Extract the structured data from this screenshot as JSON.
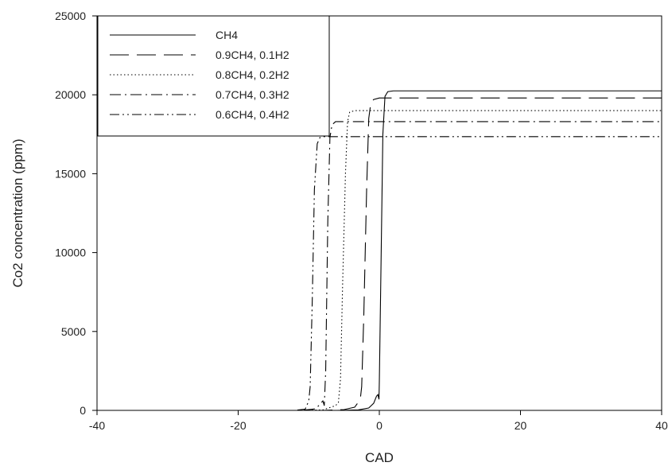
{
  "chart_data": {
    "type": "line",
    "title": "",
    "xlabel": "CAD",
    "ylabel": "Co2 concentration (ppm)",
    "xlim": [
      -40,
      40
    ],
    "ylim": [
      0,
      25000
    ],
    "xticks": [
      "-40",
      "-20",
      "0",
      "20",
      "40"
    ],
    "yticks": [
      "0",
      "5000",
      "10000",
      "15000",
      "20000",
      "25000"
    ],
    "grid": false,
    "legend_position": "top-left",
    "series": [
      {
        "name": "CH4",
        "dash": "solid",
        "x": [
          -40,
          -6,
          -3,
          -1.5,
          -0.8,
          -0.4,
          -0.2,
          -0.05,
          0,
          0.2,
          0.5,
          0.8,
          1.2,
          2,
          40
        ],
        "y": [
          0,
          0,
          30,
          150,
          450,
          900,
          1000,
          700,
          1800,
          8000,
          17500,
          19900,
          20200,
          20250,
          20250
        ]
      },
      {
        "name": "0.9CH4, 0.1H2",
        "dash": "long-dash",
        "x": [
          -40,
          -8,
          -5,
          -3.5,
          -3,
          -2.7,
          -2.5,
          -2.2,
          -1.8,
          -1.5,
          -1.2,
          -0.8,
          0,
          40
        ],
        "y": [
          0,
          0,
          50,
          200,
          500,
          700,
          1500,
          6000,
          14000,
          18500,
          19500,
          19700,
          19800,
          19800
        ]
      },
      {
        "name": "0.8CH4, 0.2H2",
        "dash": "dotted",
        "x": [
          -40,
          -11,
          -8,
          -6.2,
          -5.8,
          -5.5,
          -5.2,
          -4.8,
          -4.5,
          -4.2,
          -3.5,
          40
        ],
        "y": [
          0,
          0,
          30,
          300,
          500,
          2000,
          8000,
          15000,
          18300,
          18900,
          19000,
          19000
        ]
      },
      {
        "name": "0.7CH4, 0.3H2",
        "dash": "dash-dot",
        "x": [
          -40,
          -11,
          -9,
          -8,
          -7.8,
          -7.6,
          -7.3,
          -7,
          -6.7,
          -6.2,
          -5,
          40
        ],
        "y": [
          0,
          0,
          100,
          600,
          300,
          2500,
          12000,
          17300,
          18100,
          18300,
          18300,
          18300
        ]
      },
      {
        "name": "0.6CH4, 0.4H2",
        "dash": "dash-dot-dot",
        "x": [
          -40,
          -12,
          -10.5,
          -10,
          -9.8,
          -9.5,
          -9.2,
          -8.8,
          -8.4,
          -8,
          -7,
          40
        ],
        "y": [
          0,
          0,
          80,
          600,
          1500,
          7000,
          14000,
          16900,
          17300,
          17350,
          17350,
          17350
        ]
      }
    ]
  }
}
